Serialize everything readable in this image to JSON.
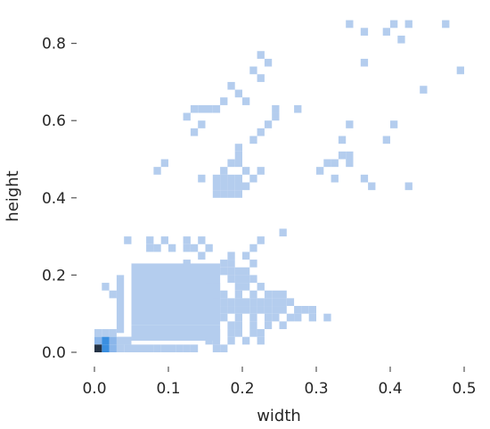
{
  "chart_data": {
    "type": "heatmap",
    "subtype": "2d-histogram",
    "xlabel": "width",
    "ylabel": "height",
    "xlim": [
      -0.02,
      0.52
    ],
    "ylim": [
      -0.02,
      0.87
    ],
    "x_ticks": [
      {
        "value": 0.0,
        "label": "0.0"
      },
      {
        "value": 0.1,
        "label": "0.1"
      },
      {
        "value": 0.2,
        "label": "0.2"
      },
      {
        "value": 0.3,
        "label": "0.3"
      },
      {
        "value": 0.4,
        "label": "0.4"
      },
      {
        "value": 0.5,
        "label": "0.5"
      }
    ],
    "y_ticks": [
      {
        "value": 0.0,
        "label": "0.0"
      },
      {
        "value": 0.2,
        "label": "0.2"
      },
      {
        "value": 0.4,
        "label": "0.4"
      },
      {
        "value": 0.6,
        "label": "0.6"
      },
      {
        "value": 0.8,
        "label": "0.8"
      }
    ],
    "grid": false,
    "legend": "none",
    "bin_width": 0.01,
    "bin_height": 0.02,
    "colors": {
      "low": "#b4cdee",
      "mid": "#8bb6ea",
      "high": "#3a8fe0",
      "peak": "#253447"
    },
    "cells": [
      [
        0.005,
        0.01,
        1.0
      ],
      [
        0.015,
        0.01,
        0.75
      ],
      [
        0.015,
        0.03,
        0.6
      ],
      [
        0.005,
        0.03,
        0.45
      ],
      [
        0.025,
        0.01,
        0.45
      ],
      [
        0.025,
        0.03,
        0.35
      ],
      [
        0.035,
        0.01,
        0.2
      ],
      [
        0.035,
        0.03,
        0.2
      ],
      [
        0.005,
        0.05,
        0.15
      ],
      [
        0.015,
        0.05,
        0.15
      ],
      [
        0.025,
        0.05,
        0.15
      ],
      [
        0.045,
        0.03,
        0.12
      ],
      [
        0.345,
        0.85,
        0.05
      ],
      [
        0.365,
        0.83,
        0.05
      ],
      [
        0.395,
        0.83,
        0.05
      ],
      [
        0.405,
        0.85,
        0.05
      ],
      [
        0.415,
        0.81,
        0.05
      ],
      [
        0.425,
        0.85,
        0.05
      ],
      [
        0.475,
        0.85,
        0.05
      ],
      [
        0.495,
        0.73,
        0.05
      ],
      [
        0.225,
        0.77,
        0.05
      ],
      [
        0.235,
        0.75,
        0.05
      ],
      [
        0.215,
        0.73,
        0.05
      ],
      [
        0.225,
        0.71,
        0.05
      ],
      [
        0.365,
        0.75,
        0.05
      ],
      [
        0.445,
        0.68,
        0.05
      ],
      [
        0.185,
        0.69,
        0.05
      ],
      [
        0.195,
        0.67,
        0.05
      ],
      [
        0.205,
        0.65,
        0.05
      ],
      [
        0.175,
        0.65,
        0.05
      ],
      [
        0.165,
        0.63,
        0.05
      ],
      [
        0.155,
        0.63,
        0.05
      ],
      [
        0.145,
        0.63,
        0.05
      ],
      [
        0.135,
        0.63,
        0.05
      ],
      [
        0.125,
        0.61,
        0.05
      ],
      [
        0.145,
        0.59,
        0.05
      ],
      [
        0.135,
        0.57,
        0.05
      ],
      [
        0.245,
        0.63,
        0.05
      ],
      [
        0.245,
        0.61,
        0.05
      ],
      [
        0.235,
        0.59,
        0.05
      ],
      [
        0.225,
        0.57,
        0.05
      ],
      [
        0.215,
        0.55,
        0.05
      ],
      [
        0.275,
        0.63,
        0.05
      ],
      [
        0.345,
        0.59,
        0.05
      ],
      [
        0.405,
        0.59,
        0.05
      ],
      [
        0.335,
        0.55,
        0.05
      ],
      [
        0.395,
        0.55,
        0.05
      ],
      [
        0.335,
        0.51,
        0.05
      ],
      [
        0.345,
        0.51,
        0.05
      ],
      [
        0.325,
        0.49,
        0.05
      ],
      [
        0.315,
        0.49,
        0.05
      ],
      [
        0.305,
        0.47,
        0.05
      ],
      [
        0.345,
        0.49,
        0.05
      ],
      [
        0.325,
        0.45,
        0.05
      ],
      [
        0.365,
        0.45,
        0.05
      ],
      [
        0.375,
        0.43,
        0.05
      ],
      [
        0.425,
        0.43,
        0.05
      ],
      [
        0.095,
        0.49,
        0.05
      ],
      [
        0.085,
        0.47,
        0.05
      ],
      [
        0.195,
        0.53,
        0.05
      ],
      [
        0.195,
        0.51,
        0.05
      ],
      [
        0.185,
        0.49,
        0.05
      ],
      [
        0.195,
        0.49,
        0.05
      ],
      [
        0.205,
        0.47,
        0.05
      ],
      [
        0.225,
        0.47,
        0.05
      ],
      [
        0.175,
        0.47,
        0.05
      ],
      [
        0.215,
        0.45,
        0.05
      ],
      [
        0.195,
        0.45,
        0.05
      ],
      [
        0.175,
        0.45,
        0.05
      ],
      [
        0.145,
        0.45,
        0.05
      ],
      [
        0.165,
        0.45,
        0.05
      ],
      [
        0.185,
        0.45,
        0.05
      ],
      [
        0.205,
        0.43,
        0.05
      ],
      [
        0.165,
        0.43,
        0.05
      ],
      [
        0.175,
        0.43,
        0.05
      ],
      [
        0.185,
        0.43,
        0.05
      ],
      [
        0.195,
        0.43,
        0.05
      ],
      [
        0.165,
        0.41,
        0.05
      ],
      [
        0.175,
        0.41,
        0.05
      ],
      [
        0.185,
        0.41,
        0.05
      ],
      [
        0.195,
        0.41,
        0.05
      ],
      [
        0.255,
        0.31,
        0.05
      ],
      [
        0.225,
        0.29,
        0.05
      ],
      [
        0.045,
        0.29,
        0.05
      ],
      [
        0.075,
        0.29,
        0.05
      ],
      [
        0.095,
        0.29,
        0.05
      ],
      [
        0.125,
        0.29,
        0.05
      ],
      [
        0.145,
        0.29,
        0.05
      ],
      [
        0.075,
        0.27,
        0.05
      ],
      [
        0.085,
        0.27,
        0.05
      ],
      [
        0.105,
        0.27,
        0.05
      ],
      [
        0.125,
        0.27,
        0.05
      ],
      [
        0.135,
        0.27,
        0.05
      ],
      [
        0.155,
        0.27,
        0.05
      ],
      [
        0.215,
        0.27,
        0.05
      ],
      [
        0.145,
        0.25,
        0.05
      ],
      [
        0.185,
        0.25,
        0.05
      ],
      [
        0.205,
        0.25,
        0.05
      ],
      [
        0.125,
        0.23,
        0.05
      ],
      [
        0.175,
        0.23,
        0.05
      ],
      [
        0.185,
        0.23,
        0.05
      ],
      [
        0.215,
        0.23,
        0.05
      ],
      [
        0.015,
        0.17,
        0.05
      ],
      [
        0.025,
        0.15,
        0.05
      ],
      [
        0.175,
        0.21,
        0.05
      ],
      [
        0.185,
        0.21,
        0.05
      ],
      [
        0.195,
        0.21,
        0.05
      ],
      [
        0.205,
        0.21,
        0.05
      ],
      [
        0.185,
        0.19,
        0.05
      ],
      [
        0.195,
        0.19,
        0.05
      ],
      [
        0.205,
        0.19,
        0.05
      ],
      [
        0.215,
        0.19,
        0.05
      ],
      [
        0.155,
        0.17,
        0.05
      ],
      [
        0.165,
        0.17,
        0.05
      ],
      [
        0.195,
        0.17,
        0.05
      ],
      [
        0.205,
        0.17,
        0.05
      ],
      [
        0.225,
        0.17,
        0.05
      ],
      [
        0.165,
        0.15,
        0.05
      ],
      [
        0.175,
        0.15,
        0.05
      ],
      [
        0.195,
        0.15,
        0.05
      ],
      [
        0.215,
        0.15,
        0.05
      ],
      [
        0.235,
        0.15,
        0.05
      ],
      [
        0.245,
        0.15,
        0.05
      ],
      [
        0.255,
        0.15,
        0.05
      ],
      [
        0.175,
        0.13,
        0.05
      ],
      [
        0.185,
        0.13,
        0.05
      ],
      [
        0.195,
        0.13,
        0.05
      ],
      [
        0.205,
        0.13,
        0.05
      ],
      [
        0.215,
        0.13,
        0.05
      ],
      [
        0.225,
        0.13,
        0.05
      ],
      [
        0.235,
        0.13,
        0.05
      ],
      [
        0.245,
        0.13,
        0.05
      ],
      [
        0.255,
        0.13,
        0.05
      ],
      [
        0.265,
        0.13,
        0.05
      ],
      [
        0.175,
        0.11,
        0.05
      ],
      [
        0.185,
        0.11,
        0.05
      ],
      [
        0.195,
        0.11,
        0.05
      ],
      [
        0.205,
        0.11,
        0.05
      ],
      [
        0.215,
        0.11,
        0.05
      ],
      [
        0.225,
        0.11,
        0.05
      ],
      [
        0.235,
        0.11,
        0.05
      ],
      [
        0.245,
        0.11,
        0.05
      ],
      [
        0.255,
        0.11,
        0.05
      ],
      [
        0.275,
        0.11,
        0.05
      ],
      [
        0.285,
        0.11,
        0.05
      ],
      [
        0.295,
        0.11,
        0.05
      ],
      [
        0.175,
        0.09,
        0.05
      ],
      [
        0.195,
        0.09,
        0.05
      ],
      [
        0.215,
        0.09,
        0.05
      ],
      [
        0.235,
        0.09,
        0.05
      ],
      [
        0.245,
        0.09,
        0.05
      ],
      [
        0.265,
        0.09,
        0.05
      ],
      [
        0.275,
        0.09,
        0.05
      ],
      [
        0.295,
        0.09,
        0.05
      ],
      [
        0.315,
        0.09,
        0.05
      ],
      [
        0.185,
        0.07,
        0.05
      ],
      [
        0.195,
        0.07,
        0.05
      ],
      [
        0.215,
        0.07,
        0.05
      ],
      [
        0.235,
        0.07,
        0.05
      ],
      [
        0.255,
        0.07,
        0.05
      ],
      [
        0.155,
        0.05,
        0.05
      ],
      [
        0.165,
        0.05,
        0.05
      ],
      [
        0.185,
        0.05,
        0.05
      ],
      [
        0.195,
        0.05,
        0.05
      ],
      [
        0.215,
        0.05,
        0.05
      ],
      [
        0.225,
        0.05,
        0.05
      ],
      [
        0.155,
        0.03,
        0.05
      ],
      [
        0.165,
        0.03,
        0.05
      ],
      [
        0.185,
        0.03,
        0.05
      ],
      [
        0.205,
        0.03,
        0.05
      ],
      [
        0.225,
        0.03,
        0.05
      ],
      [
        0.085,
        0.01,
        0.05
      ],
      [
        0.095,
        0.01,
        0.05
      ],
      [
        0.105,
        0.01,
        0.05
      ],
      [
        0.115,
        0.01,
        0.05
      ],
      [
        0.125,
        0.01,
        0.05
      ],
      [
        0.135,
        0.01,
        0.05
      ],
      [
        0.165,
        0.01,
        0.05
      ],
      [
        0.175,
        0.01,
        0.05
      ]
    ],
    "cluster_blocks": [
      [
        0.03,
        0.04,
        0.05,
        0.2
      ],
      [
        0.05,
        0.17,
        0.07,
        0.23
      ],
      [
        0.05,
        0.17,
        0.03,
        0.07
      ],
      [
        0.03,
        0.05,
        0.02,
        0.04
      ],
      [
        0.04,
        0.08,
        0.0,
        0.02
      ]
    ]
  }
}
